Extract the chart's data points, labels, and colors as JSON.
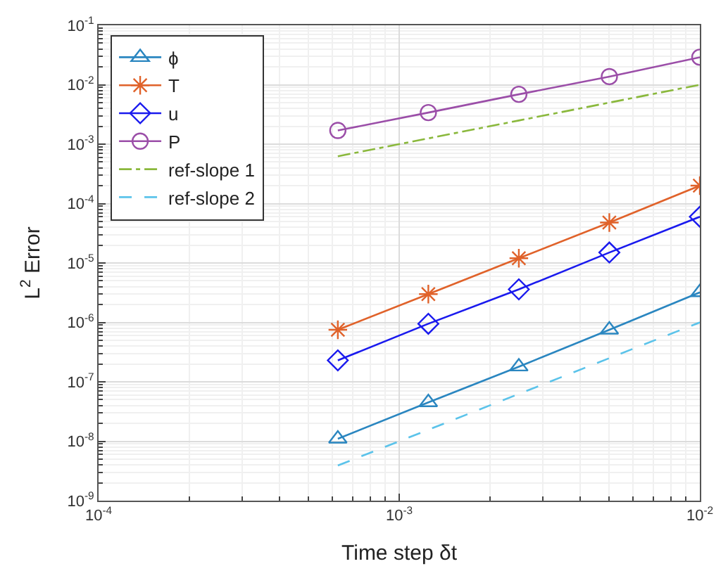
{
  "chart_data": {
    "type": "line",
    "xlabel": "Time step δt",
    "ylabel": "L$^{2}$ Error",
    "log": "xy",
    "grid": true,
    "legend": "top left",
    "x": [
      0.000625,
      0.00125,
      0.0025,
      0.005,
      0.01
    ],
    "xlim": [
      0.0001,
      0.01
    ],
    "xticks": [
      {
        "value": 0.0001,
        "label": "10$^{-4}$"
      },
      {
        "value": 0.001,
        "label": "10$^{-3}$"
      },
      {
        "value": 0.01,
        "label": "10$^{-2}$"
      }
    ],
    "ylim": [
      1e-09,
      0.1
    ],
    "yticks": [
      {
        "value": 1e-09,
        "label": "10$^{-9}$"
      },
      {
        "value": 1e-08,
        "label": "10$^{-8}$"
      },
      {
        "value": 1e-07,
        "label": "10$^{-7}$"
      },
      {
        "value": 1e-06,
        "label": "10$^{-6}$"
      },
      {
        "value": 1e-05,
        "label": "10$^{-5}$"
      },
      {
        "value": 0.0001,
        "label": "10$^{-4}$"
      },
      {
        "value": 0.001,
        "label": "10$^{-3}$"
      },
      {
        "value": 0.01,
        "label": "10$^{-2}$"
      },
      {
        "value": 0.1,
        "label": "10$^{-1}$"
      }
    ],
    "series": [
      {
        "name": "ϕ",
        "color": "#2a86c0",
        "marker": "triangle",
        "line_style": "solid",
        "values": [
          1.1e-08,
          4.5e-08,
          1.8e-07,
          7.5e-07,
          3.2e-06
        ]
      },
      {
        "name": "T",
        "color": "#e0622a",
        "marker": "cross",
        "line_style": "solid",
        "values": [
          7.5e-07,
          3e-06,
          1.2e-05,
          4.8e-05,
          0.0002
        ]
      },
      {
        "name": "u",
        "color": "#1a1aee",
        "marker": "diamond",
        "line_style": "solid",
        "values": [
          2.3e-07,
          9.5e-07,
          3.6e-06,
          1.5e-05,
          6e-05
        ]
      },
      {
        "name": "P",
        "color": "#9b4ea8",
        "marker": "circle",
        "line_style": "solid",
        "values": [
          0.0017,
          0.0034,
          0.0069,
          0.0137,
          0.029
        ]
      },
      {
        "name": "ref-slope 1",
        "color": "#8ab83c",
        "marker": "none",
        "line_style": "dashdot",
        "values": [
          0.000625,
          0.00125,
          0.0025,
          0.005,
          0.01
        ]
      },
      {
        "name": "ref-slope 2",
        "color": "#5bc3ea",
        "marker": "none",
        "line_style": "dashed",
        "values": [
          3.9e-09,
          1.56e-08,
          6.25e-08,
          2.5e-07,
          1e-06
        ]
      }
    ]
  }
}
